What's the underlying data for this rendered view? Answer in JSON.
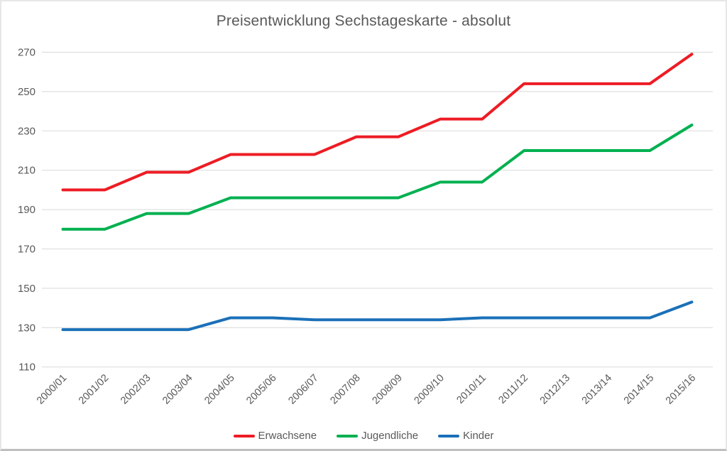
{
  "chart": {
    "title": "Preisentwicklung Sechstageskarte - absolut"
  },
  "chart_data": {
    "type": "line",
    "title": "Preisentwicklung Sechstageskarte - absolut",
    "categories": [
      "2000/01",
      "2001/02",
      "2002/03",
      "2003/04",
      "2004/05",
      "2005/06",
      "2006/07",
      "2007/08",
      "2008/09",
      "2009/10",
      "2010/11",
      "2011/12",
      "2012/13",
      "2013/14",
      "2014/15",
      "2015/16"
    ],
    "series": [
      {
        "name": "Erwachsene",
        "color": "#ED1C24",
        "values": [
          200,
          200,
          209,
          209,
          218,
          218,
          218,
          227,
          227,
          236,
          236,
          254,
          254,
          254,
          254,
          269
        ]
      },
      {
        "name": "Jugendliche",
        "color": "#00B050",
        "values": [
          180,
          180,
          188,
          188,
          196,
          196,
          196,
          196,
          196,
          204,
          204,
          220,
          220,
          220,
          220,
          233
        ]
      },
      {
        "name": "Kinder",
        "color": "#1A70B8",
        "values": [
          129,
          129,
          129,
          129,
          135,
          135,
          134,
          134,
          134,
          134,
          135,
          135,
          135,
          135,
          135,
          143
        ]
      }
    ],
    "xlabel": "",
    "ylabel": "",
    "ylim": [
      110,
      270
    ],
    "ytick_step": 20,
    "yticks": [
      110,
      130,
      150,
      170,
      190,
      210,
      230,
      250,
      270
    ],
    "grid": true,
    "legend_position": "bottom",
    "x_label_rotation_deg": 45
  },
  "colors": {
    "text": "#595959",
    "gridline": "#D9D9D9",
    "background": "#FFFFFF",
    "border": "#BFBFBF"
  }
}
